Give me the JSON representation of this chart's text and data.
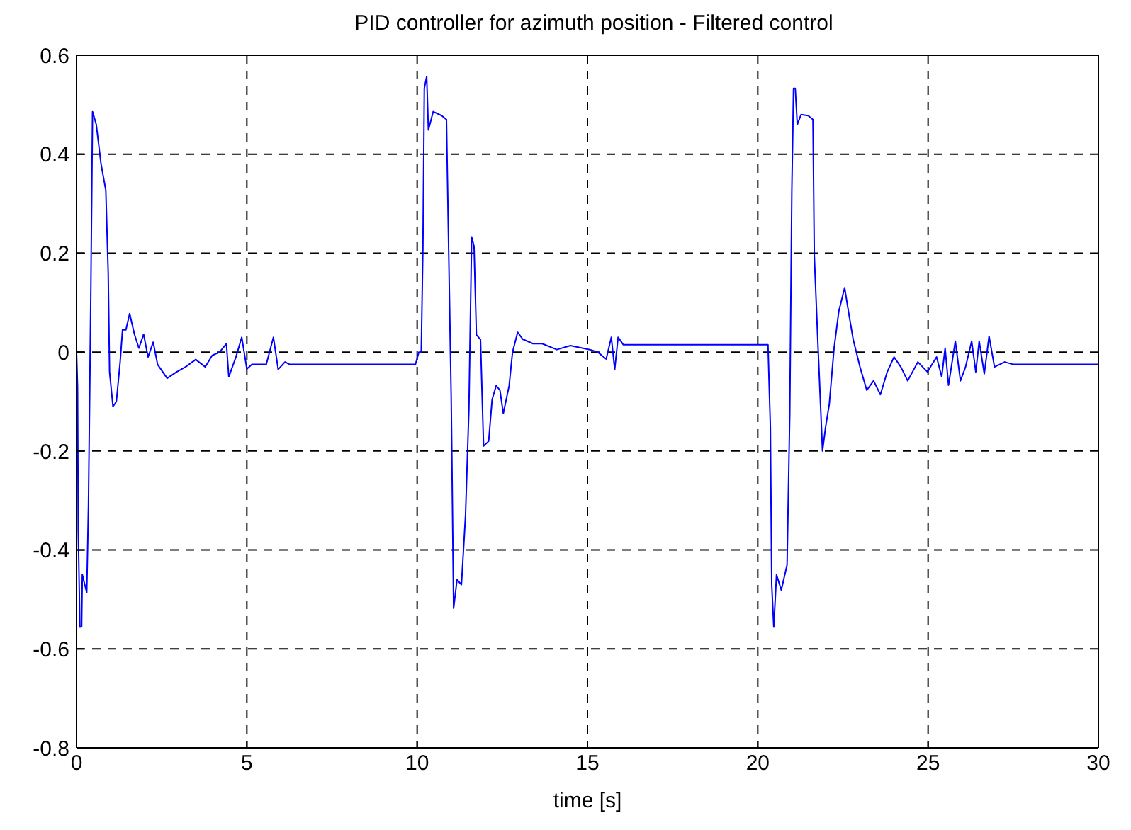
{
  "chart_data": {
    "type": "line",
    "title": "PID controller for azimuth position - Filtered control",
    "xlabel": "time [s]",
    "x": [
      0,
      0.03,
      0.05,
      0.1,
      0.15,
      0.17,
      0.3,
      0.35,
      0.42,
      0.47,
      0.58,
      0.72,
      0.86,
      0.93,
      0.97,
      1.07,
      1.17,
      1.28,
      1.35,
      1.45,
      1.56,
      1.7,
      1.83,
      1.97,
      2.1,
      2.25,
      2.38,
      2.66,
      2.94,
      3.2,
      3.5,
      3.78,
      3.98,
      4.2,
      4.4,
      4.47,
      4.68,
      4.85,
      5.0,
      5.15,
      5.57,
      5.78,
      5.92,
      6.12,
      6.26,
      9.95,
      10.05,
      10.12,
      10.17,
      10.21,
      10.28,
      10.33,
      10.47,
      10.72,
      10.86,
      10.9,
      11.0,
      11.07,
      11.17,
      11.3,
      11.42,
      11.52,
      11.6,
      11.67,
      11.74,
      11.86,
      11.95,
      12.1,
      12.2,
      12.32,
      12.43,
      12.53,
      12.7,
      12.8,
      12.95,
      13.1,
      13.4,
      13.67,
      14.1,
      14.5,
      15.07,
      15.3,
      15.55,
      15.7,
      15.8,
      15.9,
      16.05,
      20.3,
      20.37,
      20.41,
      20.47,
      20.55,
      20.69,
      20.86,
      20.94,
      21.0,
      21.05,
      21.1,
      21.16,
      21.27,
      21.48,
      21.62,
      21.66,
      21.76,
      21.9,
      21.99,
      22.1,
      22.24,
      22.38,
      22.55,
      22.66,
      22.8,
      23.0,
      23.2,
      23.4,
      23.6,
      23.8,
      24.0,
      24.2,
      24.4,
      24.7,
      24.98,
      25.25,
      25.4,
      25.5,
      25.6,
      25.8,
      25.95,
      26.1,
      26.28,
      26.4,
      26.5,
      26.65,
      26.79,
      26.95,
      27.25,
      27.5,
      30
    ],
    "series": [
      {
        "color": "#0000ff",
        "values": [
          0,
          -0.07,
          -0.36,
          -0.556,
          -0.555,
          -0.45,
          -0.486,
          -0.31,
          0.12,
          0.486,
          0.46,
          0.38,
          0.327,
          0.16,
          -0.04,
          -0.11,
          -0.1,
          -0.02,
          0.045,
          0.045,
          0.078,
          0.036,
          0.008,
          0.036,
          -0.01,
          0.02,
          -0.025,
          -0.053,
          -0.04,
          -0.03,
          -0.015,
          -0.03,
          -0.007,
          0,
          0.017,
          -0.05,
          -0.01,
          0.03,
          -0.034,
          -0.025,
          -0.025,
          0.03,
          -0.035,
          -0.02,
          -0.025,
          -0.025,
          0,
          0,
          0.214,
          0.533,
          0.557,
          0.449,
          0.486,
          0.478,
          0.47,
          0.308,
          -0.096,
          -0.518,
          -0.46,
          -0.47,
          -0.33,
          -0.115,
          0.233,
          0.214,
          0.035,
          0.025,
          -0.19,
          -0.18,
          -0.096,
          -0.068,
          -0.077,
          -0.124,
          -0.068,
          0,
          0.04,
          0.026,
          0.017,
          0.017,
          0.005,
          0.013,
          0.005,
          0,
          -0.014,
          0.03,
          -0.035,
          0.03,
          0.015,
          0.015,
          -0.152,
          -0.471,
          -0.556,
          -0.45,
          -0.481,
          -0.43,
          -0.124,
          0.327,
          0.533,
          0.533,
          0.46,
          0.48,
          0.478,
          0.47,
          0.195,
          0.026,
          -0.2,
          -0.152,
          -0.105,
          0.008,
          0.083,
          0.13,
          0.083,
          0.026,
          -0.03,
          -0.077,
          -0.058,
          -0.086,
          -0.04,
          -0.01,
          -0.03,
          -0.058,
          -0.02,
          -0.04,
          -0.01,
          -0.05,
          0.008,
          -0.067,
          0.022,
          -0.058,
          -0.03,
          0.022,
          -0.04,
          0.022,
          -0.044,
          0.032,
          -0.03,
          -0.02,
          -0.025,
          -0.025
        ]
      }
    ],
    "xlim": [
      0,
      30
    ],
    "xticks": [
      0,
      5,
      10,
      15,
      20,
      25,
      30
    ],
    "ylim": [
      -0.8,
      0.6
    ],
    "yticks": [
      -0.8,
      -0.6,
      -0.4,
      -0.2,
      0,
      0.2,
      0.4,
      0.6
    ],
    "grid": true,
    "marker": "none",
    "line_style": "solid"
  }
}
